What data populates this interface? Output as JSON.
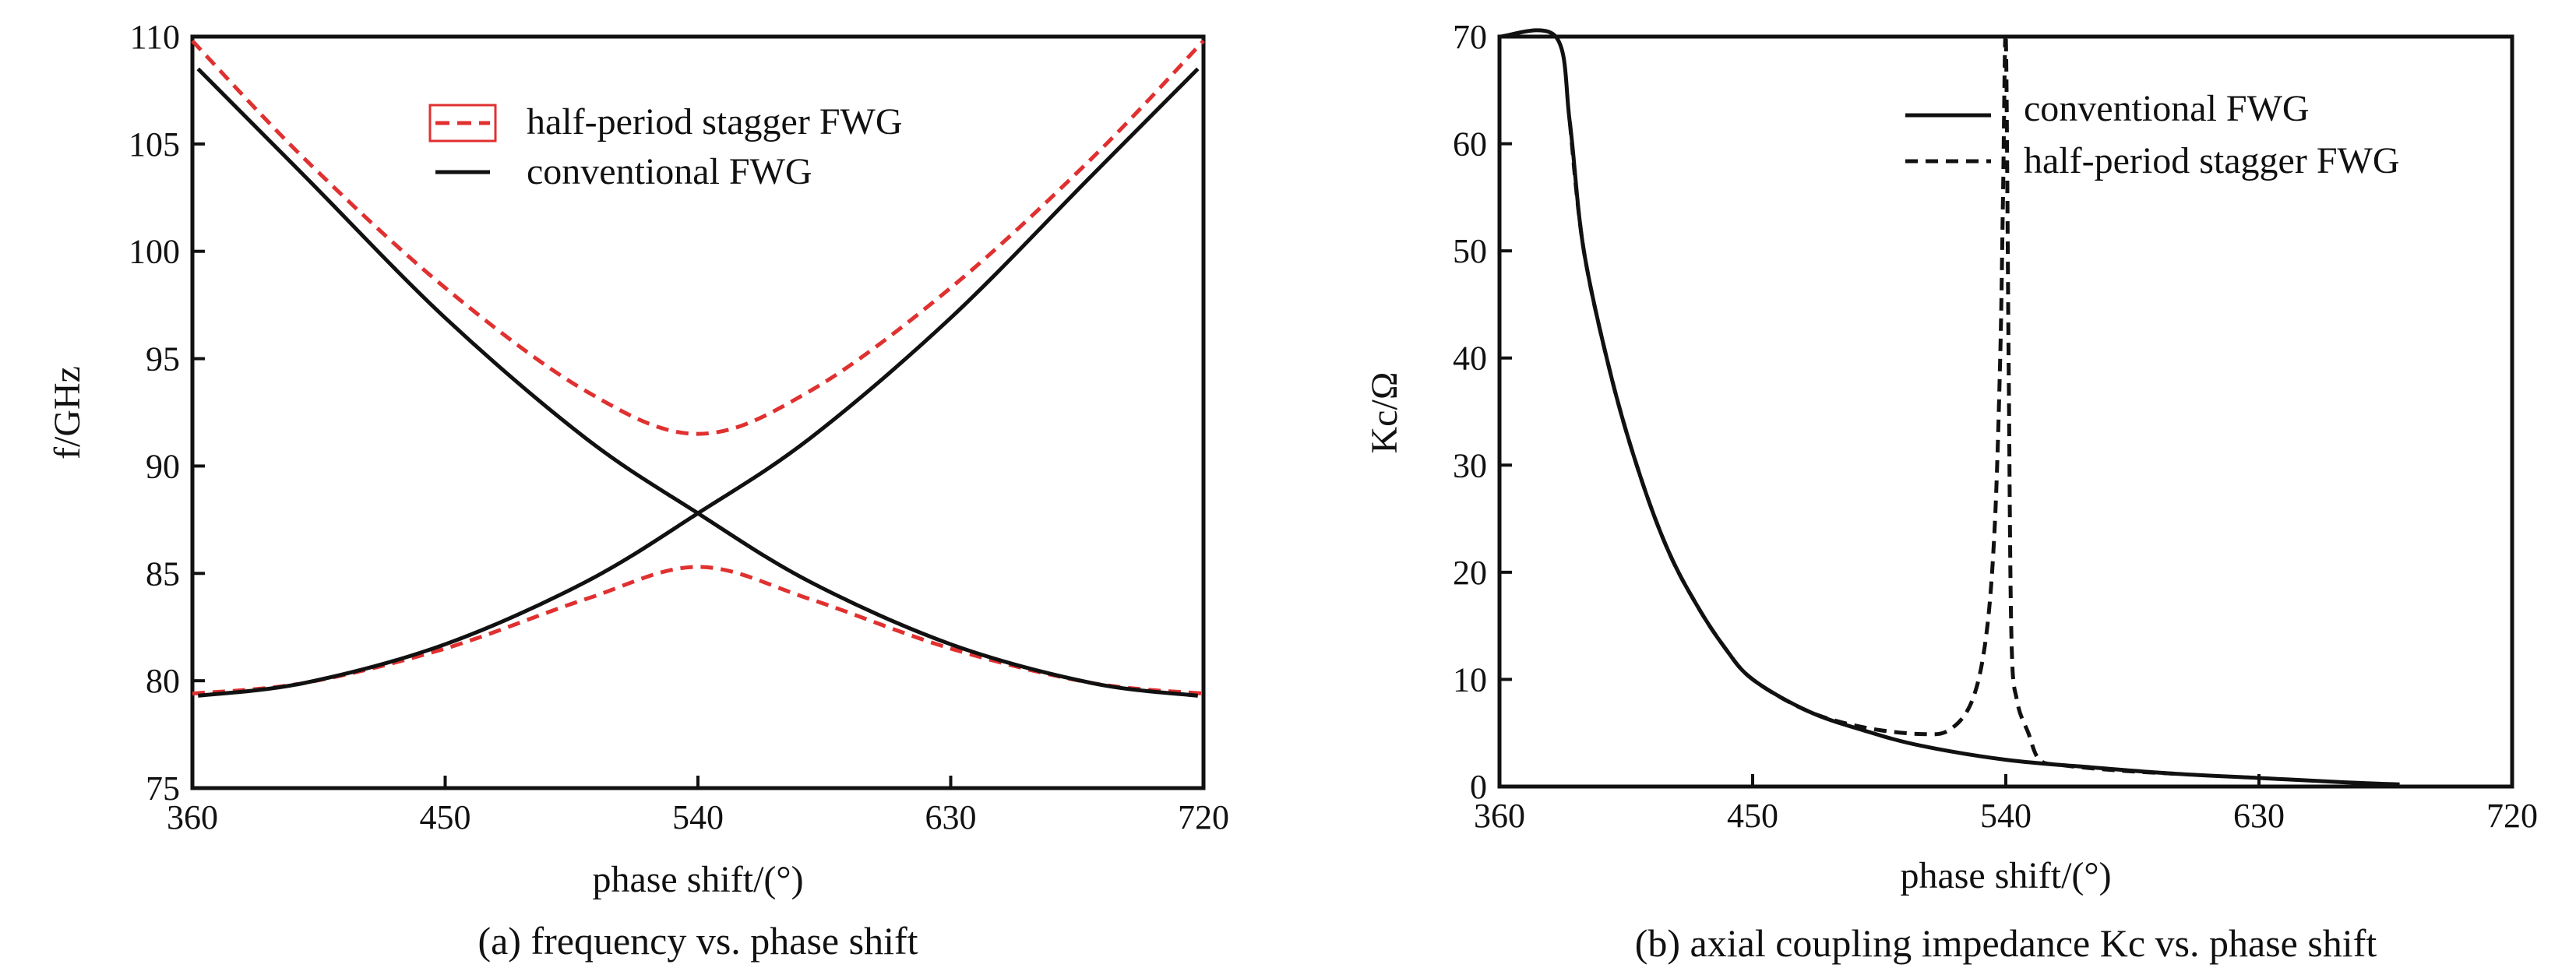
{
  "chart_data": [
    {
      "type": "line",
      "caption": "(a) frequency vs. phase shift",
      "xlabel": "phase shift/(°)",
      "ylabel": "f/GHz",
      "xlim": [
        360,
        720
      ],
      "ylim": [
        75,
        110
      ],
      "xticks": [
        "360",
        "450",
        "540",
        "630",
        "720"
      ],
      "yticks": [
        "75",
        "80",
        "85",
        "90",
        "95",
        "100",
        "105",
        "110"
      ],
      "legend_position": "top-center",
      "series": [
        {
          "name": "half-period stagger FWG",
          "style": "dashed",
          "color": "#e03030",
          "x": [
            360,
            400,
            450,
            500,
            540,
            580,
            630,
            680,
            720
          ],
          "y": [
            79.4,
            79.9,
            81.5,
            83.8,
            85.3,
            83.8,
            81.5,
            79.9,
            79.4
          ]
        },
        {
          "name": "",
          "style": "dashed",
          "color": "#e03030",
          "x": [
            360,
            400,
            450,
            500,
            540,
            580,
            630,
            680,
            720
          ],
          "y": [
            109.8,
            104.3,
            98.3,
            93.5,
            91.5,
            93.5,
            98.3,
            104.3,
            109.8
          ]
        },
        {
          "name": "conventional FWG",
          "style": "solid",
          "color": "#111111",
          "x": [
            362,
            400,
            450,
            500,
            540,
            580,
            630,
            680,
            718
          ],
          "y": [
            79.3,
            79.9,
            81.7,
            84.6,
            87.8,
            91.3,
            96.9,
            103.5,
            108.5
          ]
        },
        {
          "name": "",
          "style": "solid",
          "color": "#111111",
          "x": [
            362,
            400,
            450,
            500,
            540,
            580,
            630,
            680,
            718
          ],
          "y": [
            108.5,
            103.5,
            96.9,
            91.3,
            87.8,
            84.6,
            81.7,
            79.9,
            79.3
          ]
        }
      ]
    },
    {
      "type": "line",
      "caption": "(b) axial coupling impedance Kc vs. phase shift",
      "xlabel": "phase shift/(°)",
      "ylabel": "Kc/Ω",
      "xlim": [
        360,
        720
      ],
      "ylim": [
        0,
        70
      ],
      "xticks": [
        "360",
        "450",
        "540",
        "630",
        "720"
      ],
      "yticks": [
        "0",
        "10",
        "20",
        "30",
        "40",
        "50",
        "60",
        "70"
      ],
      "legend_position": "top-right",
      "series": [
        {
          "name": "conventional FWG",
          "style": "solid",
          "color": "#111111",
          "x": [
            360,
            380,
            385,
            390,
            400,
            410,
            420,
            430,
            440,
            450,
            470,
            490,
            510,
            540,
            570,
            600,
            630,
            660,
            680
          ],
          "y": [
            70,
            70,
            62,
            50,
            38,
            29,
            22,
            17,
            13,
            10,
            7,
            5.2,
            3.8,
            2.5,
            1.8,
            1.2,
            0.8,
            0.4,
            0.2
          ]
        },
        {
          "name": "half-period stagger FWG",
          "style": "dashed",
          "color": "#111111",
          "x": [
            385,
            390,
            400,
            410,
            420,
            430,
            440,
            450,
            470,
            490,
            510,
            520,
            528,
            533,
            536,
            538,
            539,
            540,
            541,
            542,
            544,
            548,
            552,
            560,
            580,
            600
          ],
          "y": [
            62,
            50,
            38,
            29,
            22,
            17,
            13,
            10,
            7,
            5.5,
            4.9,
            5.3,
            8,
            14,
            24,
            40,
            55,
            70,
            40,
            14,
            8,
            5,
            2.5,
            2,
            1.5,
            1.2
          ]
        }
      ]
    }
  ]
}
